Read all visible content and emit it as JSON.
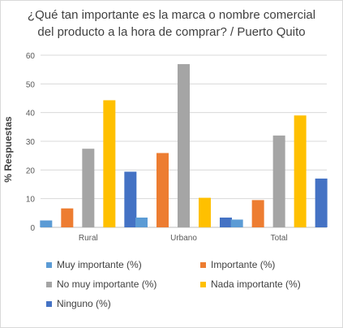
{
  "chart_data": {
    "type": "bar",
    "title": [
      "¿Qué tan importante es la  marca o nombre comercial",
      "del producto a la hora de comprar? / Puerto Quito"
    ],
    "ylabel": "% Respuestas",
    "ylim": [
      0,
      60
    ],
    "yticks": [
      0,
      10,
      20,
      30,
      40,
      50,
      60
    ],
    "grid": true,
    "legend_position": "bottom",
    "categories": [
      "Rural",
      "Urbano",
      "Total"
    ],
    "series": [
      {
        "name": "Muy importante (%)",
        "color": "#5b9bd5",
        "values": [
          2.4,
          3.4,
          2.7
        ]
      },
      {
        "name": "Importante (%)",
        "color": "#ed7d31",
        "values": [
          6.6,
          25.9,
          9.5
        ]
      },
      {
        "name": "No muy importante (%)",
        "color": "#a5a5a5",
        "values": [
          27.4,
          56.9,
          32.0
        ]
      },
      {
        "name": "Nada importante (%)",
        "color": "#ffc000",
        "values": [
          44.3,
          10.3,
          39.0
        ]
      },
      {
        "name": "Ninguno (%)",
        "color": "#4472c4",
        "values": [
          19.4,
          3.4,
          17.0
        ]
      }
    ]
  }
}
